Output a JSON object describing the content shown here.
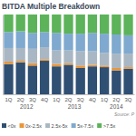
{
  "chart_data": {
    "type": "bar",
    "title": "BITDA Multiple Breakdown",
    "stacked": true,
    "legend": "bottom",
    "tick_labels": "x",
    "grid": false,
    "categories": [
      "1Q",
      "2Q",
      "3Q",
      "4Q",
      "1Q",
      "2Q",
      "3Q",
      "4Q",
      "1Q",
      "2Q",
      "3Q"
    ],
    "groups": [
      {
        "label": "2012",
        "size": 4
      },
      {
        "label": "2013",
        "size": 4
      },
      {
        "label": "2014",
        "size": 3
      }
    ],
    "source": "Source: P",
    "ylim": [
      0,
      100
    ],
    "series": [
      {
        "name": "<0x",
        "color": "#2f4f73",
        "values": [
          38,
          40,
          36,
          42,
          35,
          37,
          33,
          35,
          34,
          30,
          32
        ]
      },
      {
        "name": "0x-2.5x",
        "color": "#e8963a",
        "values": [
          3,
          2,
          3,
          2,
          3,
          2,
          3,
          2,
          2,
          3,
          2
        ]
      },
      {
        "name": "2.5x-5x",
        "color": "#a9b7c4",
        "values": [
          17,
          16,
          18,
          15,
          17,
          16,
          18,
          17,
          16,
          18,
          17
        ]
      },
      {
        "name": "5x-7.5x",
        "color": "#7fa9cf",
        "values": [
          20,
          21,
          20,
          19,
          22,
          21,
          22,
          23,
          24,
          24,
          23
        ]
      },
      {
        "name": ">7.5x",
        "color": "#5cb35a",
        "values": [
          22,
          21,
          23,
          22,
          23,
          24,
          24,
          23,
          24,
          25,
          26
        ]
      }
    ]
  }
}
